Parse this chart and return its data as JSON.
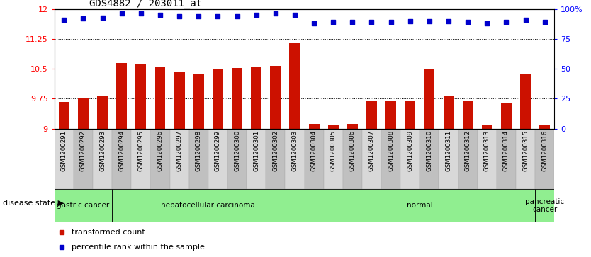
{
  "title": "GDS4882 / 203011_at",
  "categories": [
    "GSM1200291",
    "GSM1200292",
    "GSM1200293",
    "GSM1200294",
    "GSM1200295",
    "GSM1200296",
    "GSM1200297",
    "GSM1200298",
    "GSM1200299",
    "GSM1200300",
    "GSM1200301",
    "GSM1200302",
    "GSM1200303",
    "GSM1200304",
    "GSM1200305",
    "GSM1200306",
    "GSM1200307",
    "GSM1200308",
    "GSM1200309",
    "GSM1200310",
    "GSM1200311",
    "GSM1200312",
    "GSM1200313",
    "GSM1200314",
    "GSM1200315",
    "GSM1200316"
  ],
  "bar_values": [
    9.67,
    9.78,
    9.82,
    10.65,
    10.62,
    10.53,
    10.42,
    10.37,
    10.5,
    10.52,
    10.55,
    10.57,
    11.15,
    9.12,
    9.1,
    9.12,
    9.7,
    9.71,
    9.71,
    10.48,
    9.83,
    9.68,
    9.1,
    9.65,
    10.37,
    9.1
  ],
  "percentile_values": [
    91,
    92,
    93,
    96,
    96,
    95,
    94,
    94,
    94,
    94,
    95,
    96,
    95,
    88,
    89,
    89,
    89,
    89,
    90,
    90,
    90,
    89,
    88,
    89,
    91,
    89
  ],
  "bar_color": "#cc1100",
  "dot_color": "#0000cc",
  "ymin": 9.0,
  "ymax": 12.0,
  "yticks": [
    9.0,
    9.75,
    10.5,
    11.25,
    12.0
  ],
  "ytick_labels": [
    "9",
    "9.75",
    "10.5",
    "11.25",
    "12"
  ],
  "right_yticks": [
    0,
    25,
    50,
    75,
    100
  ],
  "right_ytick_labels": [
    "0",
    "25",
    "50",
    "75",
    "100%"
  ],
  "hlines": [
    9.75,
    10.5,
    11.25
  ],
  "disease_groups": [
    {
      "label": "gastric cancer",
      "start": 0,
      "end": 2
    },
    {
      "label": "hepatocellular carcinoma",
      "start": 3,
      "end": 12
    },
    {
      "label": "normal",
      "start": 13,
      "end": 24
    },
    {
      "label": "pancreatic\ncancer",
      "start": 25,
      "end": 25
    }
  ],
  "group_color_light": "#b8f0b8",
  "group_color_dark": "#90ee90",
  "disease_state_label": "disease state",
  "legend_items": [
    {
      "label": "transformed count",
      "color": "#cc1100"
    },
    {
      "label": "percentile rank within the sample",
      "color": "#0000cc"
    }
  ],
  "xtick_col_light": "#d8d8d8",
  "xtick_col_dark": "#c0c0c0"
}
